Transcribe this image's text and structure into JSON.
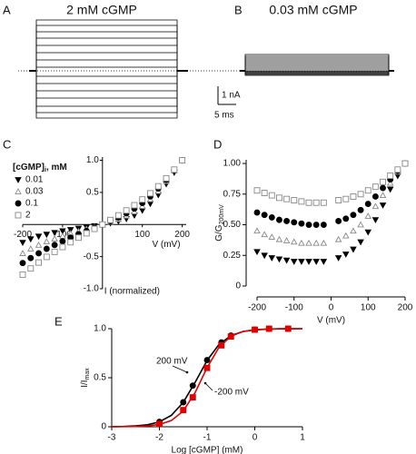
{
  "chart_data": [
    {
      "type": "traces",
      "panel": "A",
      "title": "2 mM cGMP",
      "color": "#000",
      "values": [
        2.8,
        2.5,
        2.15,
        1.8,
        1.4,
        1.0,
        0.6,
        0.2,
        -0.3,
        -0.7,
        -1.1,
        -1.5,
        -1.95,
        -2.3,
        -2.6
      ],
      "scale_bar": {
        "current": {
          "value": 1,
          "label": "1 nA"
        },
        "time": {
          "value": 5,
          "label": "5 ms"
        }
      }
    },
    {
      "type": "traces",
      "panel": "B",
      "title": "0.03 mM cGMP",
      "color": "#000",
      "values": [
        0.9,
        0.8,
        0.7,
        0.6,
        0.5,
        0.4,
        0.3,
        0.2,
        0.1,
        0,
        -0.05,
        -0.1,
        -0.15,
        -0.2,
        -0.25
      ]
    },
    {
      "type": "scatter",
      "panel": "C",
      "axes": "origin",
      "legend_title": "[cGMP]",
      "legend_title_sub": "i",
      "legend_title_tail": ", mM",
      "xlabel": "V (mV)",
      "ylabel": "I (normalized)",
      "xlim": [
        -200,
        210
      ],
      "ylim": [
        -1,
        1.05
      ],
      "xticks": [
        -200,
        -100,
        100,
        200
      ],
      "yticks": [
        {
          "value": 1,
          "label": "1.0"
        },
        0.5,
        -0.5,
        {
          "value": -1,
          "label": "-1.0"
        }
      ],
      "x": [
        -200,
        -180,
        -160,
        -140,
        -120,
        -100,
        -80,
        -60,
        -40,
        -20,
        0,
        20,
        40,
        60,
        80,
        100,
        120,
        140,
        160,
        180,
        200
      ],
      "series": [
        {
          "name": "0.01",
          "color": "#000",
          "marker": "triangle-down",
          "filled": true,
          "values": [
            -0.28,
            -0.225,
            -0.184,
            -0.154,
            -0.126,
            -0.1,
            -0.08,
            -0.06,
            -0.04,
            -0.02,
            0,
            0.023,
            0.052,
            0.09,
            0.144,
            0.22,
            0.324,
            0.462,
            0.632,
            0.81,
            1.0
          ]
        },
        {
          "name": "0.03",
          "color": "#888",
          "marker": "triangle",
          "filled": false,
          "values": [
            -0.45,
            -0.378,
            -0.32,
            -0.266,
            -0.222,
            -0.18,
            -0.14,
            -0.105,
            -0.07,
            -0.035,
            0,
            0.038,
            0.082,
            0.135,
            0.2,
            0.285,
            0.39,
            0.518,
            0.672,
            0.837,
            1.0
          ]
        },
        {
          "name": "0.1",
          "color": "#000",
          "marker": "circle",
          "filled": true,
          "values": [
            -0.6,
            -0.522,
            -0.448,
            -0.378,
            -0.318,
            -0.26,
            -0.204,
            -0.15,
            -0.1,
            -0.05,
            0,
            0.053,
            0.11,
            0.174,
            0.248,
            0.335,
            0.438,
            0.56,
            0.696,
            0.846,
            1.0
          ]
        },
        {
          "name": "2",
          "color": "#888",
          "marker": "square",
          "filled": false,
          "values": [
            -0.78,
            -0.684,
            -0.592,
            -0.504,
            -0.426,
            -0.35,
            -0.276,
            -0.204,
            -0.136,
            -0.068,
            0,
            0.07,
            0.142,
            0.219,
            0.3,
            0.39,
            0.486,
            0.595,
            0.72,
            0.855,
            1.0
          ]
        }
      ]
    },
    {
      "type": "scatter",
      "panel": "D",
      "axes": "offset",
      "xlabel": "V (mV)",
      "ylabel": "G/G",
      "ylabel_sub": "200mV",
      "xlim": [
        -200,
        200
      ],
      "ylim": [
        0,
        1.03
      ],
      "xticks": [
        -200,
        -100,
        0,
        100,
        200
      ],
      "yticks": [
        0,
        0.25,
        {
          "value": 0.5,
          "label": "0.50"
        },
        0.75,
        {
          "value": 1,
          "label": "1.00"
        }
      ],
      "x": [
        -200,
        -180,
        -160,
        -140,
        -120,
        -100,
        -80,
        -60,
        -40,
        -20,
        20,
        40,
        60,
        80,
        100,
        120,
        140,
        160,
        180,
        200
      ],
      "series": [
        {
          "color": "#000",
          "marker": "triangle-down",
          "filled": true,
          "values": [
            0.28,
            0.25,
            0.23,
            0.22,
            0.21,
            0.2,
            0.2,
            0.2,
            0.2,
            0.2,
            0.23,
            0.26,
            0.3,
            0.36,
            0.44,
            0.54,
            0.66,
            0.79,
            0.9,
            1.0
          ]
        },
        {
          "color": "#888",
          "marker": "triangle",
          "filled": false,
          "values": [
            0.45,
            0.42,
            0.4,
            0.38,
            0.37,
            0.36,
            0.35,
            0.35,
            0.35,
            0.35,
            0.38,
            0.41,
            0.45,
            0.5,
            0.57,
            0.65,
            0.74,
            0.84,
            0.93,
            1.0
          ]
        },
        {
          "color": "#000",
          "marker": "circle",
          "filled": true,
          "values": [
            0.6,
            0.58,
            0.56,
            0.54,
            0.53,
            0.52,
            0.51,
            0.5,
            0.5,
            0.5,
            0.53,
            0.55,
            0.58,
            0.62,
            0.67,
            0.73,
            0.8,
            0.87,
            0.94,
            1.0
          ]
        },
        {
          "color": "#888",
          "marker": "square",
          "filled": false,
          "values": [
            0.78,
            0.76,
            0.74,
            0.72,
            0.71,
            0.7,
            0.69,
            0.68,
            0.68,
            0.68,
            0.7,
            0.71,
            0.73,
            0.75,
            0.78,
            0.81,
            0.85,
            0.9,
            0.95,
            1.0
          ]
        }
      ]
    },
    {
      "type": "line",
      "panel": "E",
      "xlabel": "Log [cGMP] (mM)",
      "ylabel": "I/I",
      "ylabel_sub": "max",
      "xlim": [
        -3,
        1
      ],
      "ylim": [
        0,
        1
      ],
      "xticks": [
        -3,
        -2,
        -1,
        0,
        1
      ],
      "yticks": [
        0,
        0.5,
        {
          "value": 1,
          "label": "1.0"
        }
      ],
      "x": [
        -2,
        -1.5,
        -1.3,
        -1,
        -0.7,
        -0.5,
        0,
        0.3,
        0.7
      ],
      "fit_x": [
        -3,
        -2.75,
        -2.5,
        -2.25,
        -2,
        -1.75,
        -1.5,
        -1.25,
        -1,
        -0.75,
        -0.5,
        -0.25,
        0,
        0.25,
        0.5,
        0.75,
        1
      ],
      "series": [
        {
          "name": "200 mV",
          "color": "#000",
          "marker": "circle",
          "values": [
            0.05,
            0.25,
            0.42,
            0.68,
            0.86,
            0.93,
            0.99,
            1.0,
            1.0
          ],
          "fit": [
            0.0013,
            0.0033,
            0.0083,
            0.0205,
            0.05,
            0.116,
            0.249,
            0.454,
            0.676,
            0.84,
            0.929,
            0.971,
            0.988,
            0.995,
            0.998,
            0.999,
            1.0
          ]
        },
        {
          "name": "-200 mV",
          "color": "#e00000",
          "marker": "square",
          "values": [
            0.03,
            0.17,
            0.3,
            0.6,
            0.83,
            0.92,
            0.99,
            1.0,
            1.0
          ],
          "fit": [
            0.0004,
            0.0011,
            0.003,
            0.0085,
            0.0234,
            0.063,
            0.16,
            0.35,
            0.602,
            0.81,
            0.923,
            0.971,
            0.99,
            0.996,
            0.999,
            1.0,
            1.0
          ]
        }
      ]
    }
  ]
}
